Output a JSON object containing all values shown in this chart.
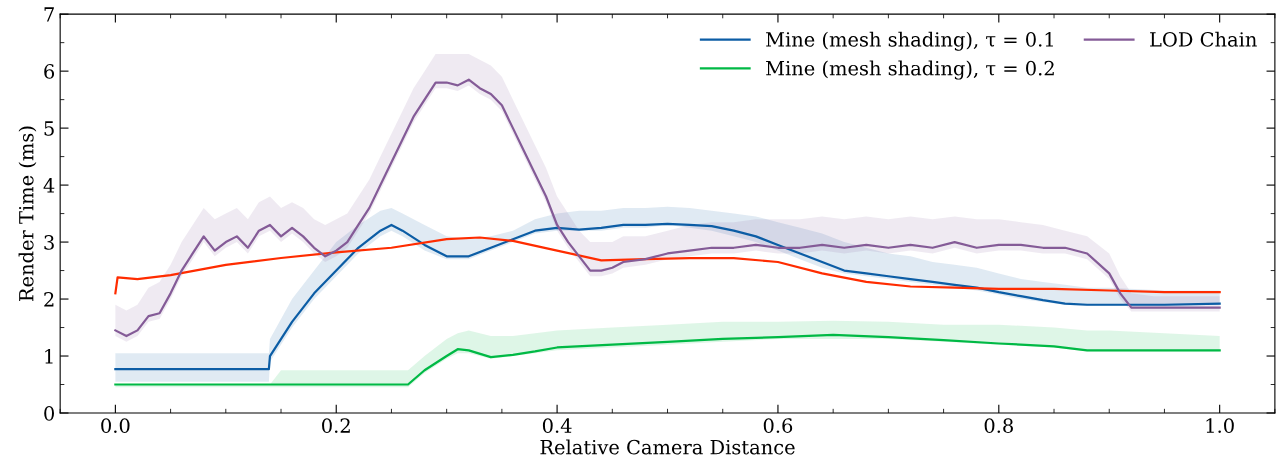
{
  "chart_data": {
    "type": "line",
    "xlabel": "Relative Camera Distance",
    "ylabel": "Render Time (ms)",
    "xlim": [
      -0.05,
      1.05
    ],
    "xticks": [
      {
        "value": 0,
        "label": "0.0"
      },
      0.2,
      0.4,
      0.6,
      0.8,
      {
        "value": 1,
        "label": "1.0"
      }
    ],
    "ylim": [
      0,
      7
    ],
    "yticks": [
      0,
      1,
      2,
      3,
      4,
      5,
      6,
      7
    ],
    "grid": false,
    "legend": "top right",
    "marker": "none",
    "line_style": "solid",
    "series": [
      {
        "name": "Mine (mesh shading), τ = 0.1",
        "color": "#0c5da5",
        "x": [
          0,
          0.139,
          0.14,
          0.16,
          0.18,
          0.2,
          0.22,
          0.24,
          0.25,
          0.26,
          0.28,
          0.3,
          0.32,
          0.34,
          0.36,
          0.38,
          0.4,
          0.42,
          0.44,
          0.46,
          0.48,
          0.5,
          0.52,
          0.54,
          0.56,
          0.58,
          0.6,
          0.62,
          0.64,
          0.66,
          0.68,
          0.7,
          0.72,
          0.74,
          0.76,
          0.78,
          0.8,
          0.82,
          0.84,
          0.86,
          0.88,
          0.9,
          0.95,
          1.0
        ],
        "values": [
          0.77,
          0.77,
          1.0,
          1.6,
          2.1,
          2.5,
          2.9,
          3.2,
          3.3,
          3.2,
          2.95,
          2.75,
          2.75,
          2.9,
          3.05,
          3.2,
          3.25,
          3.22,
          3.25,
          3.3,
          3.3,
          3.32,
          3.3,
          3.28,
          3.2,
          3.1,
          2.95,
          2.8,
          2.65,
          2.5,
          2.45,
          2.4,
          2.35,
          2.3,
          2.25,
          2.2,
          2.12,
          2.05,
          1.98,
          1.92,
          1.9,
          1.9,
          1.9,
          1.92
        ],
        "lower": [
          0.55,
          0.55,
          0.9,
          1.5,
          2.0,
          2.4,
          2.8,
          3.1,
          3.2,
          3.1,
          2.85,
          2.7,
          2.7,
          2.85,
          3.0,
          3.15,
          3.2,
          3.2,
          3.2,
          3.25,
          3.25,
          3.3,
          3.25,
          3.2,
          3.1,
          3.0,
          2.85,
          2.7,
          2.55,
          2.45,
          2.4,
          2.35,
          2.3,
          2.25,
          2.2,
          2.15,
          2.08,
          2.0,
          1.95,
          1.9,
          1.88,
          1.88,
          1.88,
          1.9
        ],
        "upper": [
          1.05,
          1.05,
          1.3,
          2.0,
          2.5,
          3.0,
          3.3,
          3.55,
          3.6,
          3.5,
          3.3,
          3.1,
          3.05,
          3.1,
          3.2,
          3.4,
          3.5,
          3.55,
          3.55,
          3.6,
          3.6,
          3.62,
          3.6,
          3.55,
          3.5,
          3.45,
          3.35,
          3.25,
          3.15,
          3.0,
          2.9,
          2.8,
          2.75,
          2.65,
          2.6,
          2.55,
          2.45,
          2.35,
          2.3,
          2.25,
          2.2,
          2.2,
          2.15,
          2.15
        ]
      },
      {
        "name": "Mine (mesh shading), τ = 0.2",
        "color": "#00b945",
        "x": [
          0,
          0.14,
          0.15,
          0.265,
          0.28,
          0.3,
          0.31,
          0.32,
          0.34,
          0.36,
          0.38,
          0.4,
          0.45,
          0.5,
          0.55,
          0.6,
          0.65,
          0.7,
          0.75,
          0.8,
          0.85,
          0.88,
          0.9,
          0.95,
          1.0
        ],
        "values": [
          0.5,
          0.5,
          0.5,
          0.5,
          0.75,
          1.0,
          1.12,
          1.1,
          0.98,
          1.02,
          1.08,
          1.15,
          1.2,
          1.25,
          1.3,
          1.33,
          1.37,
          1.33,
          1.28,
          1.22,
          1.17,
          1.1,
          1.1,
          1.1,
          1.1
        ],
        "lower": [
          0.45,
          0.45,
          0.45,
          0.45,
          0.7,
          0.95,
          1.05,
          1.05,
          0.95,
          1.0,
          1.05,
          1.1,
          1.15,
          1.2,
          1.25,
          1.3,
          1.3,
          1.3,
          1.25,
          1.2,
          1.15,
          1.08,
          1.08,
          1.08,
          1.08
        ],
        "upper": [
          0.5,
          0.5,
          0.75,
          0.75,
          1.0,
          1.3,
          1.4,
          1.45,
          1.35,
          1.35,
          1.4,
          1.45,
          1.5,
          1.55,
          1.6,
          1.6,
          1.62,
          1.6,
          1.55,
          1.55,
          1.5,
          1.45,
          1.45,
          1.4,
          1.35
        ]
      },
      {
        "color": "#ff2c00",
        "x": [
          0,
          0.002,
          0.02,
          0.05,
          0.1,
          0.15,
          0.2,
          0.25,
          0.3,
          0.33,
          0.36,
          0.4,
          0.44,
          0.48,
          0.52,
          0.56,
          0.6,
          0.64,
          0.68,
          0.72,
          0.76,
          0.8,
          0.85,
          0.9,
          0.95,
          1.0
        ],
        "values": [
          2.1,
          2.38,
          2.35,
          2.42,
          2.6,
          2.72,
          2.82,
          2.9,
          3.05,
          3.08,
          3.02,
          2.85,
          2.68,
          2.7,
          2.72,
          2.72,
          2.65,
          2.45,
          2.3,
          2.22,
          2.2,
          2.18,
          2.18,
          2.15,
          2.12,
          2.12
        ]
      },
      {
        "name": "LOD Chain",
        "color": "#845b97",
        "x": [
          0,
          0.01,
          0.02,
          0.03,
          0.04,
          0.05,
          0.06,
          0.07,
          0.08,
          0.09,
          0.1,
          0.11,
          0.12,
          0.13,
          0.14,
          0.15,
          0.16,
          0.17,
          0.18,
          0.19,
          0.2,
          0.21,
          0.22,
          0.23,
          0.24,
          0.25,
          0.26,
          0.27,
          0.28,
          0.29,
          0.3,
          0.31,
          0.32,
          0.33,
          0.34,
          0.35,
          0.36,
          0.37,
          0.38,
          0.39,
          0.4,
          0.41,
          0.42,
          0.43,
          0.44,
          0.45,
          0.46,
          0.48,
          0.5,
          0.52,
          0.54,
          0.56,
          0.58,
          0.6,
          0.62,
          0.64,
          0.66,
          0.68,
          0.7,
          0.72,
          0.74,
          0.76,
          0.78,
          0.8,
          0.82,
          0.84,
          0.86,
          0.88,
          0.9,
          0.91,
          0.92,
          0.94,
          0.96,
          0.98,
          1.0
        ],
        "values": [
          1.45,
          1.35,
          1.45,
          1.7,
          1.75,
          2.1,
          2.5,
          2.8,
          3.1,
          2.85,
          3.0,
          3.1,
          2.9,
          3.2,
          3.3,
          3.1,
          3.25,
          3.1,
          2.9,
          2.75,
          2.85,
          3.0,
          3.3,
          3.6,
          4.0,
          4.4,
          4.8,
          5.2,
          5.5,
          5.8,
          5.8,
          5.75,
          5.85,
          5.7,
          5.6,
          5.4,
          5.0,
          4.6,
          4.2,
          3.8,
          3.3,
          3.0,
          2.75,
          2.5,
          2.5,
          2.55,
          2.65,
          2.7,
          2.8,
          2.85,
          2.9,
          2.9,
          2.95,
          2.9,
          2.9,
          2.95,
          2.9,
          2.95,
          2.9,
          2.95,
          2.9,
          3.0,
          2.9,
          2.95,
          2.95,
          2.9,
          2.9,
          2.8,
          2.45,
          2.1,
          1.85,
          1.85,
          1.85,
          1.85,
          1.85
        ],
        "lower": [
          1.35,
          1.25,
          1.35,
          1.6,
          1.65,
          2.0,
          2.4,
          2.7,
          3.0,
          2.75,
          2.9,
          3.0,
          2.8,
          3.1,
          3.2,
          3.0,
          3.15,
          3.0,
          2.8,
          2.65,
          2.75,
          2.9,
          3.2,
          3.5,
          3.9,
          4.3,
          4.7,
          5.1,
          5.4,
          5.7,
          5.7,
          5.65,
          5.75,
          5.6,
          5.5,
          5.3,
          4.9,
          4.5,
          4.1,
          3.7,
          3.2,
          2.9,
          2.65,
          2.4,
          2.4,
          2.45,
          2.55,
          2.6,
          2.7,
          2.75,
          2.8,
          2.8,
          2.85,
          2.8,
          2.8,
          2.85,
          2.8,
          2.85,
          2.8,
          2.85,
          2.8,
          2.9,
          2.8,
          2.85,
          2.85,
          2.8,
          2.8,
          2.7,
          2.35,
          2.0,
          1.78,
          1.78,
          1.78,
          1.78,
          1.78
        ],
        "upper": [
          1.9,
          1.8,
          1.9,
          2.2,
          2.3,
          2.6,
          3.0,
          3.3,
          3.6,
          3.4,
          3.5,
          3.6,
          3.4,
          3.7,
          3.8,
          3.6,
          3.7,
          3.6,
          3.4,
          3.3,
          3.4,
          3.5,
          3.8,
          4.1,
          4.5,
          4.9,
          5.3,
          5.7,
          6.0,
          6.3,
          6.3,
          6.3,
          6.3,
          6.2,
          6.1,
          5.9,
          5.5,
          5.1,
          4.7,
          4.3,
          3.8,
          3.5,
          3.2,
          3.0,
          3.0,
          3.0,
          3.1,
          3.1,
          3.2,
          3.3,
          3.35,
          3.35,
          3.4,
          3.4,
          3.4,
          3.45,
          3.4,
          3.45,
          3.4,
          3.45,
          3.4,
          3.45,
          3.4,
          3.4,
          3.35,
          3.3,
          3.2,
          3.1,
          2.8,
          2.4,
          2.1,
          2.05,
          2.05,
          2.05,
          2.05
        ]
      }
    ]
  }
}
